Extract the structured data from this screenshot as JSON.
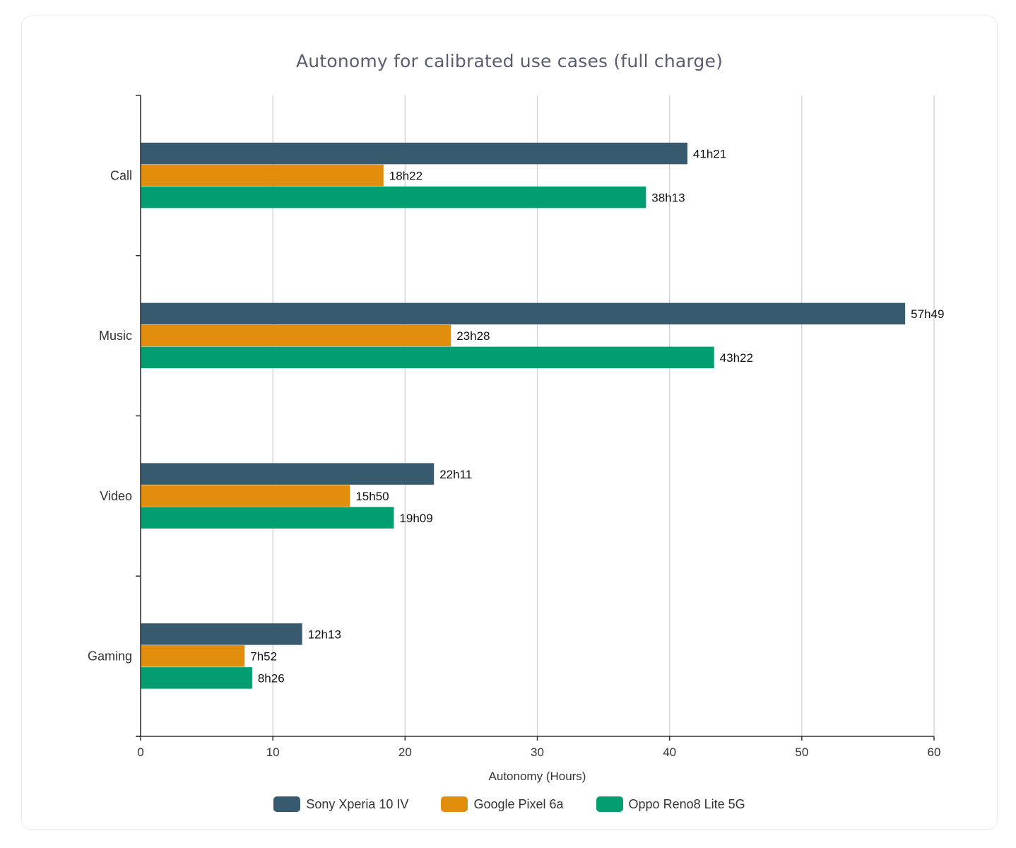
{
  "chart_data": {
    "type": "bar",
    "orientation": "horizontal",
    "title": "Autonomy for calibrated use cases (full charge)",
    "xlabel": "Autonomy (Hours)",
    "ylabel": "",
    "xlim": [
      0,
      60
    ],
    "xticks": [
      0,
      10,
      20,
      30,
      40,
      50,
      60
    ],
    "grid": "vertical",
    "legend_position": "bottom",
    "categories": [
      "Call",
      "Music",
      "Video",
      "Gaming"
    ],
    "series": [
      {
        "name": "Sony Xperia 10 IV",
        "color": "#375a6e",
        "values": [
          41.35,
          57.8167,
          22.1833,
          12.2167
        ],
        "labels": [
          "41h21",
          "57h49",
          "22h11",
          "12h13"
        ]
      },
      {
        "name": "Google Pixel 6a",
        "color": "#e08e0b",
        "values": [
          18.3667,
          23.4667,
          15.8333,
          7.8667
        ],
        "labels": [
          "18h22",
          "23h28",
          "15h50",
          "7h52"
        ]
      },
      {
        "name": "Oppo Reno8 Lite 5G",
        "color": "#039d72",
        "values": [
          38.2167,
          43.3667,
          19.15,
          8.4333
        ],
        "labels": [
          "38h13",
          "43h22",
          "19h09",
          "8h26"
        ]
      }
    ]
  }
}
